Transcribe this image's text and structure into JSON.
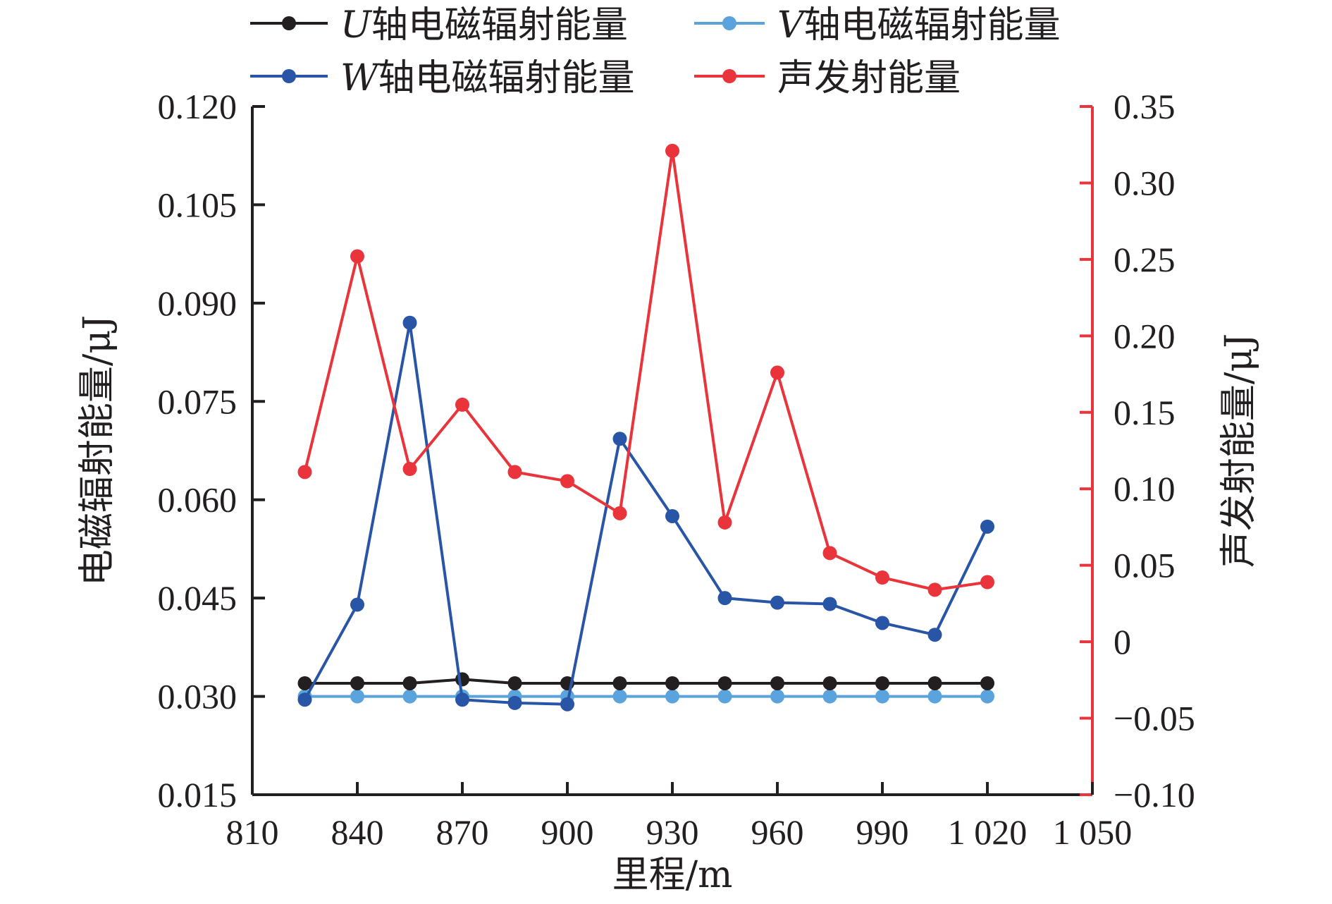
{
  "chart_data": {
    "type": "line",
    "x": [
      825,
      840,
      855,
      870,
      885,
      900,
      915,
      930,
      945,
      960,
      975,
      990,
      1005,
      1020
    ],
    "x_axis": {
      "label": "里程/m",
      "ticks": [
        810,
        840,
        870,
        900,
        930,
        960,
        990,
        1020,
        1050
      ],
      "tick_labels": [
        "810",
        "840",
        "870",
        "900",
        "930",
        "960",
        "990",
        "1 020",
        "1 050"
      ],
      "range": [
        810,
        1050
      ]
    },
    "y_left": {
      "label": "电磁辐射能量/μJ",
      "range": [
        0.015,
        0.12
      ],
      "ticks": [
        0.015,
        0.03,
        0.045,
        0.06,
        0.075,
        0.09,
        0.105,
        0.12
      ],
      "tick_labels": [
        "0.015",
        "0.030",
        "0.045",
        "0.060",
        "0.075",
        "0.090",
        "0.105",
        "0.120"
      ]
    },
    "y_right": {
      "label": "声发射能量/μJ",
      "range": [
        -0.1,
        0.35
      ],
      "ticks": [
        -0.1,
        -0.05,
        0,
        0.05,
        0.1,
        0.15,
        0.2,
        0.25,
        0.3,
        0.35
      ],
      "tick_labels": [
        "−0.10",
        "−0.05",
        "0",
        "0.05",
        "0.10",
        "0.15",
        "0.20",
        "0.25",
        "0.30",
        "0.35"
      ],
      "color": "#e8343a"
    },
    "legend_position": "top",
    "series": [
      {
        "key": "u",
        "name": "U轴电磁辐射能量",
        "italic_prefix": "U",
        "name_rest": "轴电磁辐射能量",
        "axis": "left",
        "color": "#231f20",
        "values": [
          0.032,
          0.032,
          0.032,
          0.0326,
          0.032,
          0.032,
          0.032,
          0.032,
          0.032,
          0.032,
          0.032,
          0.032,
          0.032,
          0.032
        ]
      },
      {
        "key": "v",
        "name": "V轴电磁辐射能量",
        "italic_prefix": "V",
        "name_rest": "轴电磁辐射能量",
        "axis": "left",
        "color": "#5aa3dc",
        "values": [
          0.03,
          0.03,
          0.03,
          0.03,
          0.03,
          0.03,
          0.03,
          0.03,
          0.03,
          0.03,
          0.03,
          0.03,
          0.03,
          0.03
        ]
      },
      {
        "key": "w",
        "name": "W轴电磁辐射能量",
        "italic_prefix": "W",
        "name_rest": "轴电磁辐射能量",
        "axis": "left",
        "color": "#2855a6",
        "values": [
          0.0295,
          0.044,
          0.087,
          0.0295,
          0.029,
          0.0288,
          0.0693,
          0.0575,
          0.045,
          0.0443,
          0.0441,
          0.0412,
          0.0394,
          0.0559
        ]
      },
      {
        "key": "ae",
        "name": "声发射能量",
        "italic_prefix": "",
        "name_rest": "声发射能量",
        "axis": "right",
        "color": "#e8343a",
        "values": [
          0.111,
          0.252,
          0.113,
          0.155,
          0.111,
          0.105,
          0.084,
          0.321,
          0.078,
          0.176,
          0.058,
          0.042,
          0.034,
          0.039
        ]
      }
    ]
  }
}
